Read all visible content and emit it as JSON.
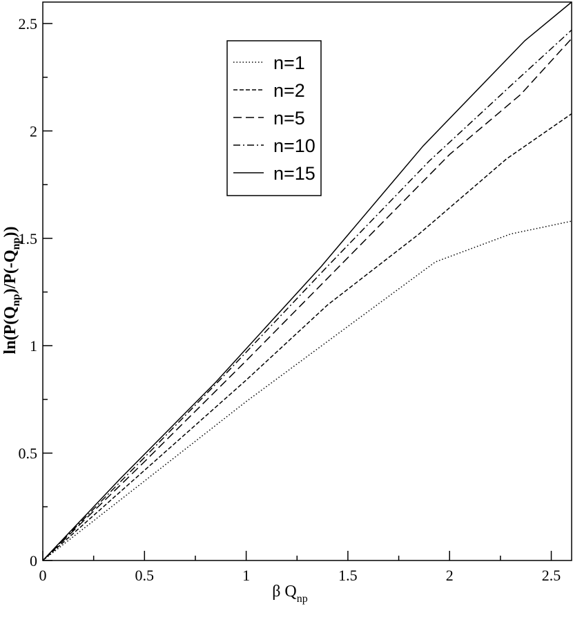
{
  "chart_data": {
    "type": "line",
    "title": "",
    "xlabel": {
      "main": "β Q",
      "sub": "np"
    },
    "ylabel": {
      "prefix": "ln(P(Q",
      "sub1": "np",
      "middle": ")/P(-Q",
      "sub2": "np",
      "suffix": "))"
    },
    "xlim": [
      0,
      2.6
    ],
    "ylim": [
      0,
      2.6
    ],
    "x_ticks": [
      {
        "value": 0,
        "label": "0"
      },
      {
        "value": 0.5,
        "label": "0.5"
      },
      {
        "value": 1,
        "label": "1"
      },
      {
        "value": 1.5,
        "label": "1.5"
      },
      {
        "value": 2,
        "label": "2"
      },
      {
        "value": 2.5,
        "label": "2.5"
      }
    ],
    "y_ticks": [
      {
        "value": 0,
        "label": "0"
      },
      {
        "value": 0.5,
        "label": "0.5"
      },
      {
        "value": 1,
        "label": "1"
      },
      {
        "value": 1.5,
        "label": "1.5"
      },
      {
        "value": 2,
        "label": "2"
      },
      {
        "value": 2.5,
        "label": "2.5"
      }
    ],
    "grid": false,
    "legend_position": "top-center",
    "series": [
      {
        "name": "n=1",
        "dash": "dotted",
        "points": [
          [
            0,
            0
          ],
          [
            0.5,
            0.37
          ],
          [
            1,
            0.74
          ],
          [
            1.5,
            1.09
          ],
          [
            1.93,
            1.39
          ],
          [
            2.3,
            1.52
          ],
          [
            2.6,
            1.58
          ]
        ]
      },
      {
        "name": "n=2",
        "dash": "short-dash",
        "points": [
          [
            0,
            0
          ],
          [
            0.5,
            0.42
          ],
          [
            1,
            0.84
          ],
          [
            1.4,
            1.19
          ],
          [
            1.85,
            1.52
          ],
          [
            2.28,
            1.87
          ],
          [
            2.6,
            2.08
          ]
        ]
      },
      {
        "name": "n=5",
        "dash": "long-dash",
        "points": [
          [
            0,
            0
          ],
          [
            0.5,
            0.46
          ],
          [
            1,
            0.93
          ],
          [
            1.5,
            1.41
          ],
          [
            2,
            1.89
          ],
          [
            2.35,
            2.17
          ],
          [
            2.6,
            2.43
          ]
        ]
      },
      {
        "name": "n=10",
        "dash": "dash-dot",
        "points": [
          [
            0,
            0
          ],
          [
            0.5,
            0.48
          ],
          [
            0.88,
            0.85
          ],
          [
            1.4,
            1.37
          ],
          [
            1.9,
            1.86
          ],
          [
            2.3,
            2.21
          ],
          [
            2.6,
            2.47
          ]
        ]
      },
      {
        "name": "n=15",
        "dash": "solid",
        "points": [
          [
            0,
            0
          ],
          [
            0.38,
            0.38
          ],
          [
            0.85,
            0.83
          ],
          [
            1.37,
            1.37
          ],
          [
            1.87,
            1.93
          ],
          [
            2.37,
            2.42
          ],
          [
            2.6,
            2.6
          ]
        ]
      }
    ]
  }
}
